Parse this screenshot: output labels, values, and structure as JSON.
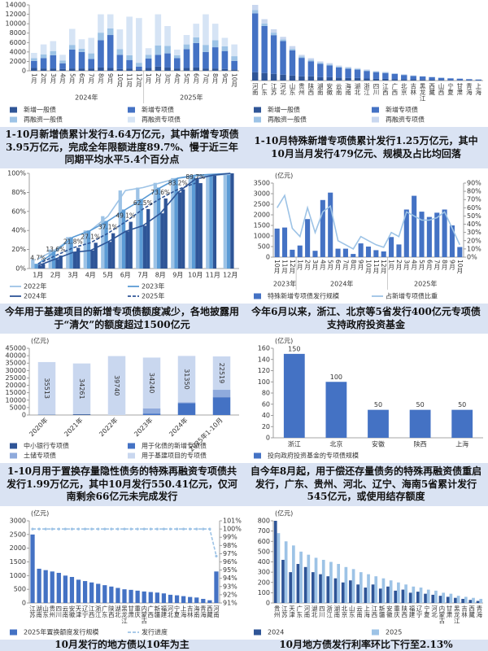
{
  "chart_data": [
    {
      "type": "bar",
      "stacked": true,
      "label_style": "vertical",
      "groups": [
        {
          "name": "2024年",
          "categories": [
            "1月",
            "2月",
            "3月",
            "4月",
            "5月",
            "6月",
            "7月",
            "8月",
            "9月",
            "10月",
            "11月",
            "12月"
          ]
        },
        {
          "name": "2025年",
          "categories": [
            "1月",
            "2月",
            "3月",
            "4月",
            "5月",
            "6月",
            "7月",
            "8月",
            "9月",
            "10月"
          ]
        }
      ],
      "ylim": [
        0,
        14000
      ],
      "yticks": [
        0,
        2000,
        4000,
        6000,
        8000,
        10000,
        12000,
        14000
      ],
      "series": [
        {
          "name": "新增一般债",
          "color": "#2f5597",
          "values": [
            600,
            500,
            500,
            400,
            500,
            500,
            500,
            700,
            600,
            400,
            500,
            300,
            600,
            900,
            700,
            500,
            600,
            700,
            500,
            500,
            400,
            300
          ]
        },
        {
          "name": "新增专项债",
          "color": "#4472c4",
          "values": [
            1500,
            2200,
            2800,
            1200,
            4000,
            3500,
            2000,
            5800,
            7000,
            3000,
            1800,
            600,
            2000,
            2500,
            3000,
            2200,
            4000,
            5200,
            3500,
            4500,
            3800,
            1800
          ]
        },
        {
          "name": "再融资一般债",
          "color": "#9dc3e6",
          "values": [
            600,
            800,
            900,
            600,
            1000,
            700,
            1200,
            1600,
            1400,
            1200,
            1000,
            800,
            800,
            2000,
            1600,
            600,
            1000,
            1200,
            1500,
            1500,
            1000,
            1000
          ]
        },
        {
          "name": "再融资专项债",
          "color": "#d6e4f5",
          "values": [
            1100,
            2100,
            2100,
            1200,
            3400,
            2000,
            3300,
            3900,
            3000,
            4200,
            8200,
            9500,
            1400,
            6600,
            4200,
            1200,
            2000,
            2900,
            6500,
            3500,
            1800,
            2500
          ]
        }
      ],
      "caption": "1-10月新增债累计发行4.64万亿元，其中新增专项债3.95万亿元，完成全年限额进度89.7%、慢于近三年同期平均水平5.4个百分点"
    },
    {
      "type": "bar",
      "stacked": true,
      "label_style": "vertical",
      "categories": [
        "河南",
        "广东",
        "江苏",
        "河北",
        "山东",
        "贵州",
        "陕西",
        "湖南",
        "安徽",
        "云南",
        "海南",
        "湖北",
        "浙江",
        "四川",
        "江西",
        "广西",
        "北京",
        "吉林",
        "黑龙江",
        "西藏",
        "山西",
        "宁夏",
        "甘肃",
        "青海",
        "上海"
      ],
      "ylim": [
        0,
        4500
      ],
      "series": [
        {
          "name": "新增一般债",
          "color": "#2f5597",
          "values": [
            500,
            450,
            400,
            350,
            300,
            250,
            250,
            200,
            200,
            180,
            150,
            150,
            120,
            100,
            100,
            90,
            80,
            70,
            60,
            50,
            40,
            30,
            30,
            20,
            20
          ]
        },
        {
          "name": "新增专项债",
          "color": "#4472c4",
          "values": [
            3500,
            2800,
            2300,
            2000,
            1500,
            1100,
            900,
            800,
            700,
            600,
            550,
            500,
            450,
            400,
            350,
            300,
            250,
            200,
            180,
            150,
            120,
            100,
            80,
            60,
            40
          ]
        },
        {
          "name": "再融资一般债",
          "color": "#9dc3e6",
          "values": [
            200,
            150,
            150,
            100,
            100,
            80,
            80,
            60,
            60,
            50,
            50,
            40,
            40,
            30,
            30,
            20,
            20,
            20,
            10,
            10,
            10,
            10,
            10,
            10,
            10
          ]
        },
        {
          "name": "再融资专项债",
          "color": "#c9d7ef",
          "values": [
            300,
            250,
            200,
            150,
            150,
            100,
            100,
            80,
            80,
            60,
            60,
            50,
            50,
            40,
            40,
            30,
            30,
            20,
            20,
            20,
            10,
            10,
            10,
            10,
            10
          ]
        }
      ],
      "caption": "1-10月特殊新增专项债累计发行1.25万亿元，其中10月当月发行479亿元、规模及占比均回落"
    },
    {
      "type": "line",
      "label_style": "horizontal",
      "categories": [
        "1月",
        "2月",
        "3月",
        "4月",
        "5月",
        "6月",
        "7月",
        "8月",
        "9月",
        "10月",
        "11月",
        "12月"
      ],
      "ylim": [
        0,
        100
      ],
      "yticks": [
        {
          "value": 0,
          "label": "0%"
        },
        {
          "value": 20,
          "label": "20%"
        },
        {
          "value": 40,
          "label": "40%"
        },
        {
          "value": 60,
          "label": "60%"
        },
        {
          "value": 80,
          "label": "80%"
        },
        {
          "value": 100,
          "label": "100%"
        }
      ],
      "series": [
        {
          "name": "2022年",
          "color": "#9dc3e6",
          "values": [
            10,
            20,
            33,
            40,
            55,
            82,
            85,
            90,
            95,
            97,
            98,
            99
          ]
        },
        {
          "name": "2023年",
          "color": "#5b9bd5",
          "values": [
            5,
            18,
            33,
            40,
            50,
            62,
            73,
            85,
            95,
            98,
            99,
            100
          ]
        },
        {
          "name": "2024年",
          "color": "#2e5597",
          "values": [
            3,
            10,
            17,
            19,
            28,
            39,
            45,
            58,
            80,
            94,
            98,
            100
          ]
        },
        {
          "name": "2025年",
          "color": "#2f5597",
          "dash": true,
          "values": [
            4.7,
            13.6,
            21.8,
            27.1,
            37.1,
            49.1,
            62.5,
            73.6,
            83.2,
            89.7,
            null,
            null
          ],
          "value_labels": [
            "4.7%",
            "13.6%",
            "21.8%",
            "27.1%",
            "37.1%",
            "49.1%",
            "62.5%",
            "73.6%",
            "83.2%",
            "89.7%",
            null,
            null
          ]
        }
      ],
      "caption": "今年用于基建项目的新增专项债额度减少，各地披露用于“清欠”的额度超过1500亿元"
    },
    {
      "type": "bar",
      "label_style": "vertical",
      "y_label": "(亿元)",
      "groups": [
        {
          "name": "2023年",
          "categories": [
            "10月",
            "11月",
            "12月"
          ]
        },
        {
          "name": "2024年",
          "categories": [
            "1月",
            "2月",
            "3月",
            "4月",
            "5月",
            "6月",
            "7月",
            "8月",
            "9月",
            "10月",
            "11月",
            "12月"
          ]
        },
        {
          "name": "2025年",
          "categories": [
            "1月",
            "2月",
            "3月",
            "4月",
            "5月",
            "6月",
            "7月",
            "8月",
            "9月",
            "10月"
          ]
        }
      ],
      "ylim": [
        0,
        3500
      ],
      "yticks": [
        0,
        500,
        1000,
        1500,
        2000,
        2500,
        3000,
        3500
      ],
      "y2lim": [
        0,
        90
      ],
      "y2ticks": [
        {
          "value": 0,
          "label": "0%"
        },
        {
          "value": 10,
          "label": "10%"
        },
        {
          "value": 20,
          "label": "20%"
        },
        {
          "value": 30,
          "label": "30%"
        },
        {
          "value": 40,
          "label": "40%"
        },
        {
          "value": 50,
          "label": "50%"
        },
        {
          "value": 60,
          "label": "60%"
        },
        {
          "value": 70,
          "label": "70%"
        },
        {
          "value": 80,
          "label": "80%"
        },
        {
          "value": 90,
          "label": "90%"
        }
      ],
      "series": [
        {
          "name": "特殊新增专项债发行规模",
          "color": "#4472c4",
          "values": [
            1350,
            1400,
            350,
            550,
            1800,
            300,
            2700,
            3050,
            400,
            400,
            150,
            650,
            500,
            330,
            270,
            950,
            600,
            2250,
            2900,
            2150,
            1900,
            2100,
            2250,
            1500,
            479
          ]
        },
        {
          "name": "占新增专项债比重",
          "color": "#9dc3e6",
          "type": "line",
          "axis": "y2",
          "values": [
            60,
            75,
            35,
            25,
            60,
            30,
            55,
            62,
            20,
            15,
            10,
            25,
            20,
            15,
            12,
            30,
            25,
            55,
            50,
            45,
            45,
            48,
            55,
            35,
            15
          ]
        }
      ],
      "caption": "今年6月以来，浙江、北京等5省发行400亿元专项债支持政府投资基金"
    },
    {
      "type": "bar",
      "stacked": true,
      "label_style": "rotated",
      "y_label": "(亿元)",
      "categories": [
        "2020年",
        "2021年",
        "2022年",
        "2023年",
        "2024年",
        "2025年1-10月"
      ],
      "ylim": [
        0,
        45000
      ],
      "yticks": [
        0,
        5000,
        10000,
        15000,
        20000,
        25000,
        30000,
        35000,
        40000,
        45000
      ],
      "series": [
        {
          "name": "中小银行专项债",
          "color": "#2f5597",
          "values": [
            200,
            500,
            0,
            0,
            0,
            0
          ]
        },
        {
          "name": "用于化债的新增专项债",
          "color": "#4472c4",
          "values": [
            0,
            0,
            0,
            1000,
            8000,
            12000
          ]
        },
        {
          "name": "土储专项债",
          "color": "#8faadc",
          "values": [
            0,
            0,
            0,
            3500,
            500,
            5000
          ]
        },
        {
          "name": "用于基建项目的专项债",
          "color": "#c9d7ef",
          "data_labels": true,
          "values": [
            35513,
            34261,
            39740,
            34240,
            31350,
            22519
          ]
        }
      ],
      "caption": "1-10月用于置换存量隐性债务的特殊再融资专项债共发行1.99万亿元，其中10月发行550.41亿元，仅河南剩余66亿元未完成发行"
    },
    {
      "type": "bar",
      "label_style": "horizontal",
      "y_label": "(亿元)",
      "categories": [
        "浙江",
        "北京",
        "安徽",
        "陕西",
        "上海"
      ],
      "ylim": [
        0,
        160
      ],
      "yticks": [
        0,
        20,
        40,
        60,
        80,
        100,
        120,
        140,
        160
      ],
      "series": [
        {
          "name": "投向政府投资基金的专项债规模",
          "color": "#4472c4",
          "data_labels": true,
          "values": [
            150,
            100,
            50,
            50,
            50
          ]
        }
      ],
      "caption": "自今年8月起，用于偿还存量债务的特殊再融资债重启发行，广东、贵州、河北、辽宁、海南5省累计发行545亿元，或使用结存额度"
    },
    {
      "type": "bar",
      "label_style": "vertical",
      "y_label": "(亿元)",
      "categories": [
        "江苏",
        "湖南",
        "山东",
        "贵州",
        "四川",
        "云南",
        "安徽",
        "天津",
        "辽宁",
        "江西",
        "浙江",
        "广东",
        "陕西",
        "湖北",
        "黑龙江",
        "甘肃",
        "重庆",
        "内蒙古",
        "广西",
        "新疆",
        "福建",
        "河北",
        "宁夏",
        "上海",
        "吉林",
        "海南",
        "青海",
        "西藏",
        "河南"
      ],
      "ylim": [
        0,
        3000
      ],
      "yticks": [
        0,
        500,
        1000,
        1500,
        2000,
        2500,
        3000
      ],
      "y2lim": [
        91,
        101
      ],
      "y2ticks": [
        {
          "value": 91,
          "label": "91%"
        },
        {
          "value": 92,
          "label": "92%"
        },
        {
          "value": 93,
          "label": "93%"
        },
        {
          "value": 94,
          "label": "94%"
        },
        {
          "value": 95,
          "label": "95%"
        },
        {
          "value": 96,
          "label": "96%"
        },
        {
          "value": 97,
          "label": "97%"
        },
        {
          "value": 98,
          "label": "98%"
        },
        {
          "value": 99,
          "label": "99%"
        },
        {
          "value": 100,
          "label": "100%"
        },
        {
          "value": 101,
          "label": "101%"
        }
      ],
      "series": [
        {
          "name": "2025年置换额度发行规模",
          "color": "#4472c4",
          "values": [
            2500,
            1250,
            1200,
            1150,
            1100,
            1000,
            950,
            850,
            800,
            750,
            700,
            650,
            600,
            550,
            500,
            480,
            450,
            420,
            400,
            380,
            350,
            300,
            280,
            250,
            220,
            200,
            150,
            100,
            1150
          ]
        },
        {
          "name": "发行进度",
          "color": "#9dc3e6",
          "type": "line",
          "axis": "y2",
          "dash": true,
          "markers": true,
          "values": [
            100,
            100,
            100,
            100,
            100,
            100,
            100,
            100,
            100,
            100,
            100,
            100,
            100,
            100,
            100,
            100,
            100,
            100,
            100,
            100,
            100,
            100,
            100,
            100,
            100,
            100,
            100,
            100,
            96.7
          ]
        }
      ],
      "caption": "10月发行的地方债以10年为主"
    },
    {
      "type": "bar",
      "label_style": "vertical",
      "y_label": "(亿元)",
      "categories": [
        "贵州",
        "江苏",
        "天津",
        "广东",
        "河南",
        "湖北",
        "四川",
        "浙江",
        "湖南",
        "北京",
        "山东",
        "云南",
        "上海",
        "江西",
        "新疆",
        "安徽",
        "重庆",
        "陕西",
        "福建",
        "辽宁",
        "宁夏",
        "河北",
        "内蒙古",
        "甘肃",
        "黑龙江",
        "吉林",
        "西藏",
        "青海"
      ],
      "ylim": [
        0,
        800
      ],
      "yticks": [
        0,
        100,
        200,
        300,
        400,
        500,
        600,
        700,
        800
      ],
      "series": [
        {
          "name": "2024",
          "color": "#2f5597",
          "values": [
            800,
            420,
            300,
            380,
            350,
            300,
            280,
            260,
            240,
            200,
            220,
            180,
            150,
            180,
            140,
            160,
            120,
            130,
            100,
            110,
            90,
            80,
            70,
            60,
            50,
            40,
            30,
            20
          ]
        },
        {
          "name": "2025",
          "color": "#9dc3e6",
          "values": [
            680,
            600,
            560,
            500,
            470,
            440,
            420,
            400,
            380,
            350,
            330,
            300,
            280,
            260,
            240,
            220,
            200,
            180,
            160,
            150,
            130,
            120,
            100,
            90,
            70,
            60,
            50,
            40
          ]
        }
      ],
      "caption": "10月地方债发行利率环比下行至2.13%"
    }
  ]
}
